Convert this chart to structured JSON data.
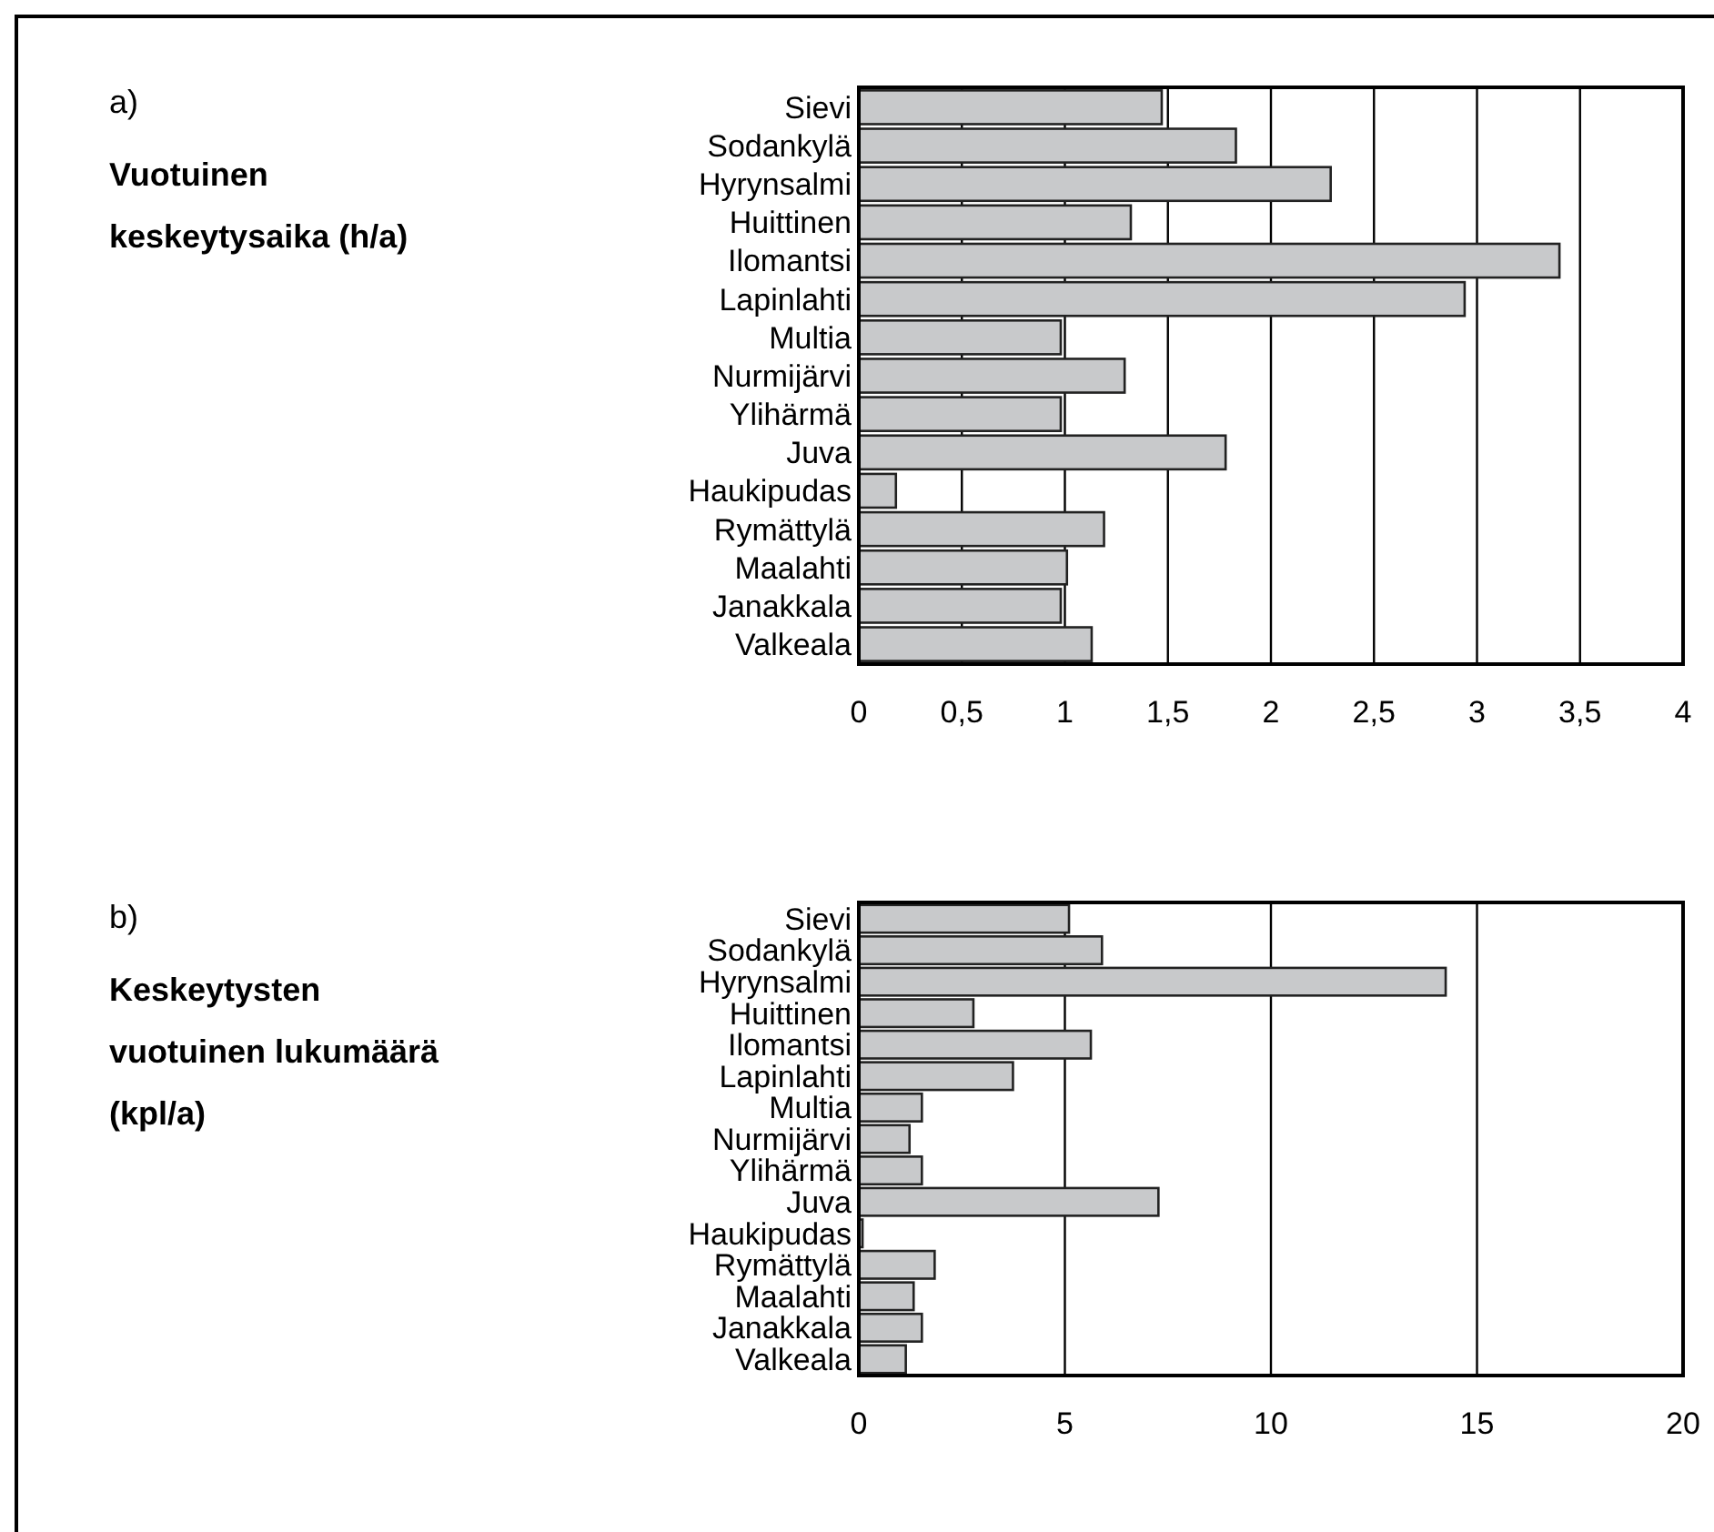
{
  "chart_data": [
    {
      "type": "bar",
      "orientation": "horizontal",
      "ylabel": "Vuotuinen keskeytysaika (h/a)",
      "annotations": [
        "a)"
      ],
      "categories": [
        "Sievi",
        "Sodankylä",
        "Hyrynsalmi",
        "Huittinen",
        "Ilomantsi",
        "Lapinlahti",
        "Multia",
        "Nurmijärvi",
        "Ylihärmä",
        "Juva",
        "Haukipudas",
        "Rymättylä",
        "Maalahti",
        "Janakkala",
        "Valkeala"
      ],
      "values": [
        1.47,
        1.83,
        2.29,
        1.32,
        3.4,
        2.94,
        0.98,
        1.29,
        0.98,
        1.78,
        0.18,
        1.19,
        1.01,
        0.98,
        1.13
      ],
      "color": "#c8c9cb",
      "xlim": [
        0,
        4
      ],
      "xticks": [
        0,
        {
          "value": 0.5,
          "label": "0,5"
        },
        1,
        {
          "value": 1.5,
          "label": "1,5"
        },
        2,
        {
          "value": 2.5,
          "label": "2,5"
        },
        3,
        {
          "value": 3.5,
          "label": "3,5"
        },
        4
      ],
      "grid": "x"
    },
    {
      "type": "bar",
      "orientation": "horizontal",
      "ylabel": "Keskeytysten vuotuinen lukumäärä (kpl/a)",
      "annotations": [
        "b)"
      ],
      "categories": [
        "Sievi",
        "Sodankylä",
        "Hyrynsalmi",
        "Huittinen",
        "Ilomantsi",
        "Lapinlahti",
        "Multia",
        "Nurmijärvi",
        "Ylihärmä",
        "Juva",
        "Haukipudas",
        "Rymättylä",
        "Maalahti",
        "Janakkala",
        "Valkeala"
      ],
      "values": [
        5.1,
        5.9,
        14.24,
        2.78,
        5.63,
        3.74,
        1.53,
        1.23,
        1.53,
        7.27,
        0.09,
        1.84,
        1.33,
        1.53,
        1.14
      ],
      "color": "#c8c9cb",
      "xlim": [
        0,
        20
      ],
      "xticks": [
        0,
        5,
        10,
        15,
        20
      ],
      "grid": "x"
    }
  ]
}
